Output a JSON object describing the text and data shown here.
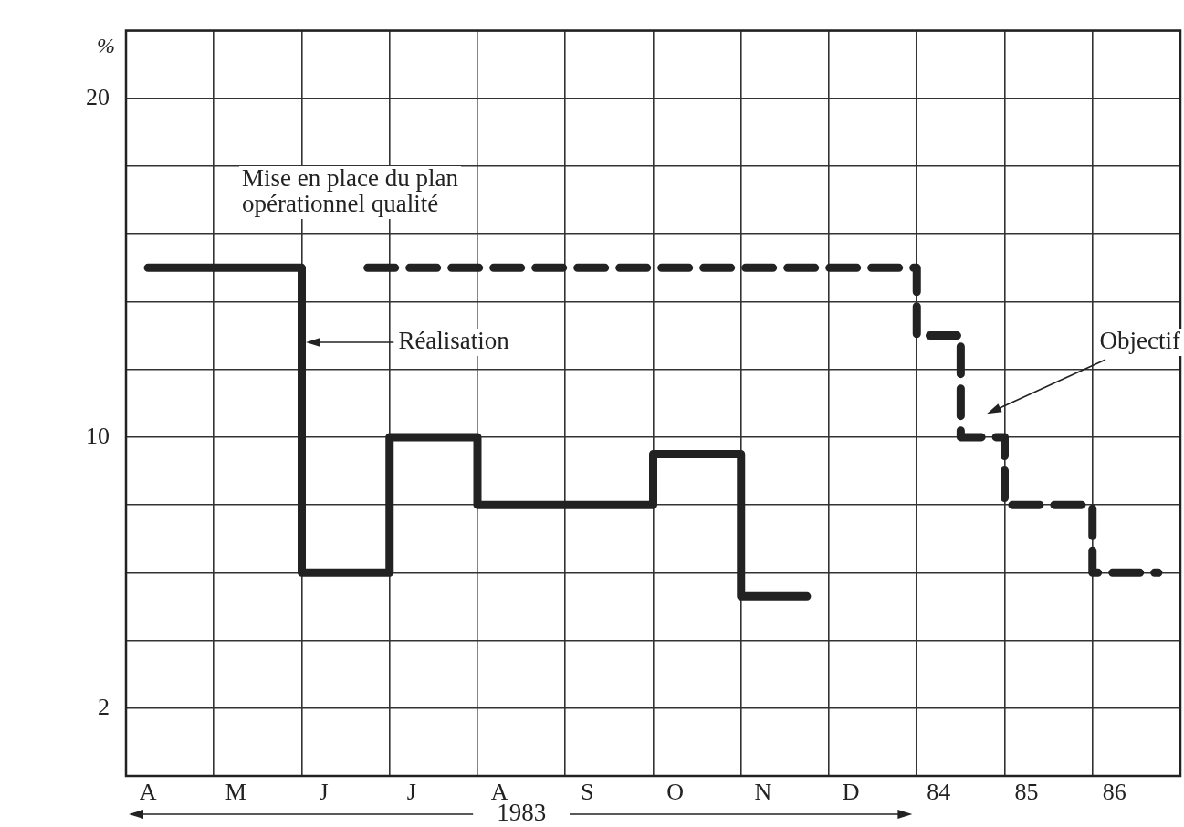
{
  "chart_data": {
    "type": "step",
    "ylabel": "%",
    "categories": [
      "A",
      null,
      "M",
      null,
      "J",
      null,
      "J",
      null,
      "A",
      null,
      "S",
      null,
      "O",
      null,
      "N",
      null,
      "D",
      null,
      "84",
      null,
      "85",
      null,
      "86",
      null
    ],
    "ylim": [
      0,
      22
    ],
    "yticks": [
      {
        "value": 0,
        "label": null
      },
      2,
      {
        "value": 4,
        "label": null
      },
      {
        "value": 6,
        "label": null
      },
      {
        "value": 8,
        "label": null
      },
      10,
      {
        "value": 12,
        "label": null
      },
      {
        "value": 14,
        "label": null
      },
      {
        "value": 16,
        "label": null
      },
      {
        "value": 18,
        "label": null
      },
      20,
      {
        "value": 22,
        "label": null
      }
    ],
    "grid": true,
    "series": [
      {
        "color": "#222222",
        "line_style": "solid",
        "values": [
          15,
          15,
          15,
          15,
          6,
          6,
          10,
          10,
          8,
          8,
          8,
          8,
          9.5,
          9.5,
          5.3,
          5.3,
          null,
          null,
          null,
          null,
          null,
          null,
          null,
          null
        ]
      },
      {
        "color": "#222222",
        "line_style": "dashed",
        "values": [
          null,
          null,
          null,
          null,
          null,
          15,
          15,
          15,
          15,
          15,
          15,
          15,
          15,
          15,
          15,
          15,
          15,
          15,
          13,
          10,
          8,
          8,
          6,
          6
        ]
      }
    ],
    "annotations": [
      "Mise en place du plan\nopérationnel qualité",
      "Réalisation",
      "Objectif",
      "1983"
    ]
  }
}
